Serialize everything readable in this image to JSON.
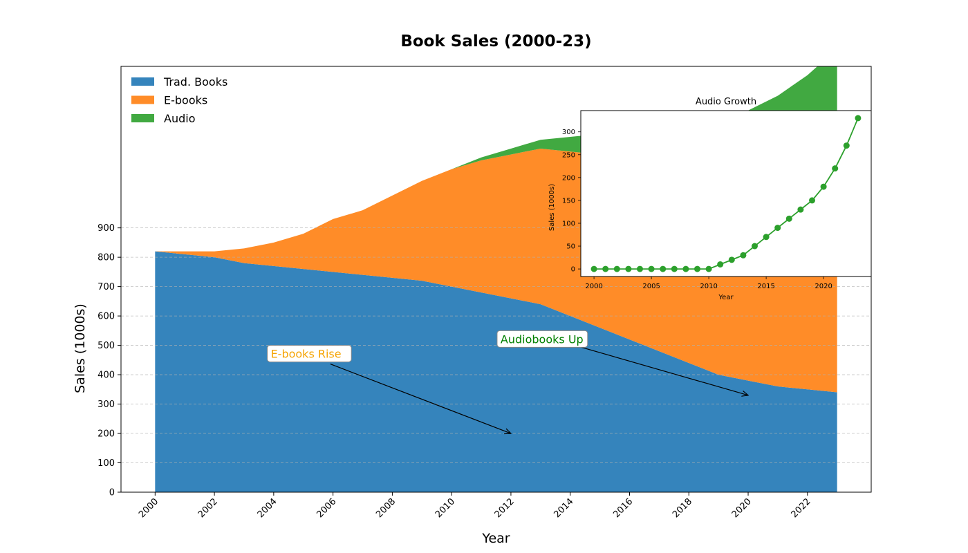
{
  "chart_data": [
    {
      "type": "area",
      "stacked": true,
      "title": "Book Sales (2000-23)",
      "xlabel": "Year",
      "ylabel": "Sales (1000s)",
      "x": [
        2000,
        2001,
        2002,
        2003,
        2004,
        2005,
        2006,
        2007,
        2008,
        2009,
        2010,
        2011,
        2012,
        2013,
        2014,
        2015,
        2016,
        2017,
        2018,
        2019,
        2020,
        2021,
        2022,
        2023
      ],
      "xticks": [
        2000,
        2002,
        2004,
        2006,
        2008,
        2010,
        2012,
        2014,
        2016,
        2018,
        2020,
        2022
      ],
      "yticks": [
        0,
        100,
        200,
        300,
        400,
        500,
        600,
        700,
        800,
        900
      ],
      "xlim": [
        1998.85,
        2024.15
      ],
      "ylim": [
        0,
        1450
      ],
      "grid": "y dashed",
      "legend_position": "upper left",
      "series": [
        {
          "name": "Trad. Books",
          "color": "#3584bc",
          "values": [
            820,
            810,
            800,
            780,
            770,
            760,
            750,
            740,
            730,
            720,
            700,
            680,
            660,
            640,
            600,
            560,
            520,
            480,
            440,
            400,
            380,
            360,
            350,
            340
          ]
        },
        {
          "name": "E-books",
          "color": "#ff8c28",
          "values": [
            0,
            10,
            20,
            50,
            80,
            120,
            180,
            220,
            280,
            340,
            400,
            450,
            490,
            530,
            560,
            590,
            620,
            650,
            680,
            710,
            740,
            770,
            800,
            840
          ]
        },
        {
          "name": "Audio",
          "color": "#41a941",
          "values": [
            0,
            0,
            0,
            0,
            0,
            0,
            0,
            0,
            0,
            0,
            0,
            10,
            20,
            30,
            50,
            70,
            90,
            110,
            130,
            150,
            180,
            220,
            270,
            330
          ]
        }
      ],
      "annotations": [
        {
          "text": "E-books Rise",
          "color": "#f5a300",
          "xy": [
            2012,
            200
          ],
          "text_xy": [
            2003.9,
            460
          ]
        },
        {
          "text": "Audiobooks Up",
          "color": "#008000",
          "xy": [
            2020,
            330
          ],
          "text_xy": [
            2011.65,
            510
          ]
        }
      ]
    },
    {
      "type": "line",
      "title": "Audio Growth",
      "xlabel": "Year",
      "ylabel": "Sales (1000s)",
      "color": "#2ca02c",
      "x": [
        2000,
        2001,
        2002,
        2003,
        2004,
        2005,
        2006,
        2007,
        2008,
        2009,
        2010,
        2011,
        2012,
        2013,
        2014,
        2015,
        2016,
        2017,
        2018,
        2019,
        2020,
        2021,
        2022,
        2023
      ],
      "values": [
        0,
        0,
        0,
        0,
        0,
        0,
        0,
        0,
        0,
        0,
        0,
        10,
        20,
        30,
        50,
        70,
        90,
        110,
        130,
        150,
        180,
        220,
        270,
        330
      ],
      "xticks": [
        2000,
        2005,
        2010,
        2015,
        2020
      ],
      "yticks": [
        0,
        50,
        100,
        150,
        200,
        250,
        300
      ],
      "xlim": [
        1998.85,
        2024.15
      ],
      "ylim": [
        -16.5,
        346.5
      ],
      "marker": "circle"
    }
  ]
}
